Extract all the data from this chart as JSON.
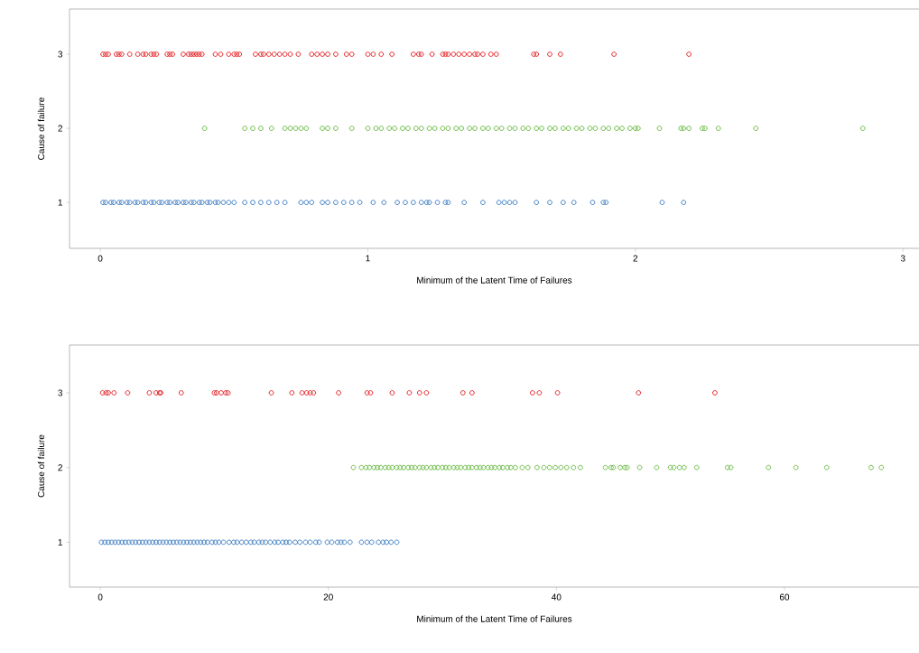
{
  "chart_data": [
    {
      "type": "scatter",
      "xlabel": "Minimum of the Latent Time of Failures",
      "ylabel": "Cause of failure",
      "marker": "circle",
      "xlim": [
        -0.115,
        3.06
      ],
      "ylim": [
        0.38,
        3.61
      ],
      "xticks": [
        0,
        1,
        2,
        3
      ],
      "yticks": [
        1,
        2,
        3
      ],
      "series": [
        {
          "color": "#e8262a",
          "x": [
            0.01,
            0.02,
            0.03,
            0.06,
            0.07,
            0.08,
            0.11,
            0.14,
            0.16,
            0.17,
            0.19,
            0.2,
            0.21,
            0.25,
            0.26,
            0.27,
            0.31,
            0.33,
            0.34,
            0.35,
            0.36,
            0.37,
            0.38,
            0.43,
            0.45,
            0.48,
            0.5,
            0.51,
            0.52,
            0.58,
            0.6,
            0.61,
            0.63,
            0.65,
            0.67,
            0.69,
            0.71,
            0.74,
            0.79,
            0.81,
            0.83,
            0.85,
            0.88,
            0.92,
            0.94,
            1.0,
            1.02,
            1.05,
            1.09,
            1.17,
            1.19,
            1.2,
            1.24,
            1.28,
            1.29,
            1.3,
            1.32,
            1.34,
            1.36,
            1.38,
            1.4,
            1.41,
            1.43,
            1.46,
            1.48,
            1.62,
            1.63,
            1.68,
            1.72,
            1.92,
            2.2
          ],
          "values": [
            3,
            3,
            3,
            3,
            3,
            3,
            3,
            3,
            3,
            3,
            3,
            3,
            3,
            3,
            3,
            3,
            3,
            3,
            3,
            3,
            3,
            3,
            3,
            3,
            3,
            3,
            3,
            3,
            3,
            3,
            3,
            3,
            3,
            3,
            3,
            3,
            3,
            3,
            3,
            3,
            3,
            3,
            3,
            3,
            3,
            3,
            3,
            3,
            3,
            3,
            3,
            3,
            3,
            3,
            3,
            3,
            3,
            3,
            3,
            3,
            3,
            3,
            3,
            3,
            3,
            3,
            3,
            3,
            3,
            3,
            3
          ]
        },
        {
          "color": "#6bbd45",
          "x": [
            0.39,
            0.54,
            0.57,
            0.6,
            0.64,
            0.69,
            0.71,
            0.73,
            0.75,
            0.77,
            0.83,
            0.85,
            0.88,
            0.94,
            1.0,
            1.03,
            1.05,
            1.08,
            1.1,
            1.13,
            1.15,
            1.18,
            1.2,
            1.23,
            1.25,
            1.28,
            1.3,
            1.33,
            1.35,
            1.38,
            1.4,
            1.43,
            1.45,
            1.48,
            1.5,
            1.53,
            1.55,
            1.58,
            1.6,
            1.63,
            1.65,
            1.68,
            1.7,
            1.73,
            1.75,
            1.78,
            1.8,
            1.83,
            1.85,
            1.88,
            1.9,
            1.93,
            1.95,
            1.98,
            2.0,
            2.01,
            2.09,
            2.17,
            2.18,
            2.2,
            2.25,
            2.26,
            2.31,
            2.45,
            2.85
          ],
          "values": [
            2,
            2,
            2,
            2,
            2,
            2,
            2,
            2,
            2,
            2,
            2,
            2,
            2,
            2,
            2,
            2,
            2,
            2,
            2,
            2,
            2,
            2,
            2,
            2,
            2,
            2,
            2,
            2,
            2,
            2,
            2,
            2,
            2,
            2,
            2,
            2,
            2,
            2,
            2,
            2,
            2,
            2,
            2,
            2,
            2,
            2,
            2,
            2,
            2,
            2,
            2,
            2,
            2,
            2,
            2,
            2,
            2,
            2,
            2,
            2,
            2,
            2,
            2,
            2,
            2
          ]
        },
        {
          "color": "#3f7fc4",
          "x": [
            0.01,
            0.02,
            0.04,
            0.05,
            0.07,
            0.08,
            0.1,
            0.11,
            0.13,
            0.14,
            0.16,
            0.17,
            0.19,
            0.2,
            0.22,
            0.23,
            0.25,
            0.26,
            0.28,
            0.29,
            0.31,
            0.32,
            0.34,
            0.35,
            0.37,
            0.38,
            0.4,
            0.41,
            0.43,
            0.44,
            0.46,
            0.48,
            0.5,
            0.54,
            0.57,
            0.6,
            0.63,
            0.66,
            0.69,
            0.75,
            0.77,
            0.79,
            0.83,
            0.85,
            0.88,
            0.91,
            0.94,
            0.97,
            1.02,
            1.06,
            1.11,
            1.14,
            1.17,
            1.2,
            1.22,
            1.23,
            1.26,
            1.29,
            1.3,
            1.36,
            1.43,
            1.49,
            1.51,
            1.53,
            1.55,
            1.63,
            1.68,
            1.73,
            1.77,
            1.84,
            1.88,
            1.89,
            2.1,
            2.18
          ],
          "values": [
            1,
            1,
            1,
            1,
            1,
            1,
            1,
            1,
            1,
            1,
            1,
            1,
            1,
            1,
            1,
            1,
            1,
            1,
            1,
            1,
            1,
            1,
            1,
            1,
            1,
            1,
            1,
            1,
            1,
            1,
            1,
            1,
            1,
            1,
            1,
            1,
            1,
            1,
            1,
            1,
            1,
            1,
            1,
            1,
            1,
            1,
            1,
            1,
            1,
            1,
            1,
            1,
            1,
            1,
            1,
            1,
            1,
            1,
            1,
            1,
            1,
            1,
            1,
            1,
            1,
            1,
            1,
            1,
            1,
            1,
            1,
            1,
            1,
            1
          ]
        }
      ]
    },
    {
      "type": "scatter",
      "xlabel": "Minimum of the Latent Time of Failures",
      "ylabel": "Cause of failure",
      "marker": "circle",
      "xlim": [
        -2.7,
        71.8
      ],
      "ylim": [
        0.4,
        3.64
      ],
      "xticks": [
        0,
        20,
        40,
        60
      ],
      "yticks": [
        1,
        2,
        3
      ],
      "series": [
        {
          "color": "#e8262a",
          "x": [
            0.2,
            0.5,
            0.7,
            1.2,
            2.4,
            4.3,
            4.9,
            5.2,
            5.3,
            7.1,
            10.0,
            10.2,
            10.6,
            11.0,
            11.2,
            15.0,
            16.8,
            17.7,
            18.1,
            18.4,
            18.7,
            20.9,
            23.4,
            23.7,
            25.6,
            27.1,
            28.0,
            28.6,
            31.8,
            32.6,
            37.9,
            38.5,
            40.1,
            47.2,
            53.9
          ],
          "values": [
            3,
            3,
            3,
            3,
            3,
            3,
            3,
            3,
            3,
            3,
            3,
            3,
            3,
            3,
            3,
            3,
            3,
            3,
            3,
            3,
            3,
            3,
            3,
            3,
            3,
            3,
            3,
            3,
            3,
            3,
            3,
            3,
            3,
            3,
            3
          ]
        },
        {
          "color": "#6bbd45",
          "x": [
            22.2,
            22.9,
            23.3,
            23.6,
            24.0,
            24.3,
            24.6,
            25.0,
            25.3,
            25.6,
            26.0,
            26.3,
            26.6,
            27.0,
            27.3,
            27.6,
            28.0,
            28.3,
            28.6,
            29.0,
            29.3,
            29.6,
            30.0,
            30.3,
            30.6,
            31.0,
            31.3,
            31.6,
            32.0,
            32.3,
            32.6,
            33.0,
            33.3,
            33.6,
            34.0,
            34.3,
            34.6,
            35.0,
            35.3,
            35.7,
            36.0,
            36.4,
            37.0,
            37.5,
            38.3,
            38.9,
            39.4,
            39.9,
            40.4,
            40.9,
            41.5,
            42.1,
            44.3,
            44.8,
            45.0,
            45.6,
            46.0,
            46.2,
            47.3,
            48.8,
            50.0,
            50.3,
            50.8,
            51.2,
            52.3,
            55.0,
            55.3,
            58.6,
            61.0,
            63.7,
            67.6,
            68.5
          ],
          "values": [
            2,
            2,
            2,
            2,
            2,
            2,
            2,
            2,
            2,
            2,
            2,
            2,
            2,
            2,
            2,
            2,
            2,
            2,
            2,
            2,
            2,
            2,
            2,
            2,
            2,
            2,
            2,
            2,
            2,
            2,
            2,
            2,
            2,
            2,
            2,
            2,
            2,
            2,
            2,
            2,
            2,
            2,
            2,
            2,
            2,
            2,
            2,
            2,
            2,
            2,
            2,
            2,
            2,
            2,
            2,
            2,
            2,
            2,
            2,
            2,
            2,
            2,
            2,
            2,
            2,
            2,
            2,
            2,
            2,
            2,
            2,
            2
          ]
        },
        {
          "color": "#3f7fc4",
          "x": [
            0.1,
            0.4,
            0.7,
            1.0,
            1.3,
            1.6,
            1.9,
            2.2,
            2.5,
            2.8,
            3.1,
            3.4,
            3.7,
            4.0,
            4.3,
            4.6,
            4.9,
            5.2,
            5.5,
            5.8,
            6.1,
            6.4,
            6.7,
            7.0,
            7.3,
            7.6,
            7.9,
            8.2,
            8.5,
            8.8,
            9.1,
            9.4,
            9.8,
            10.1,
            10.4,
            10.8,
            11.3,
            11.7,
            12.0,
            12.4,
            12.8,
            13.2,
            13.5,
            13.9,
            14.2,
            14.5,
            14.9,
            15.3,
            15.6,
            16.0,
            16.3,
            16.6,
            17.1,
            17.5,
            18.0,
            18.4,
            18.9,
            19.2,
            19.9,
            20.3,
            20.8,
            21.1,
            21.4,
            21.9,
            22.9,
            23.4,
            23.8,
            24.4,
            24.8,
            25.1,
            25.5,
            26.0
          ],
          "values": [
            1,
            1,
            1,
            1,
            1,
            1,
            1,
            1,
            1,
            1,
            1,
            1,
            1,
            1,
            1,
            1,
            1,
            1,
            1,
            1,
            1,
            1,
            1,
            1,
            1,
            1,
            1,
            1,
            1,
            1,
            1,
            1,
            1,
            1,
            1,
            1,
            1,
            1,
            1,
            1,
            1,
            1,
            1,
            1,
            1,
            1,
            1,
            1,
            1,
            1,
            1,
            1,
            1,
            1,
            1,
            1,
            1,
            1,
            1,
            1,
            1,
            1,
            1,
            1,
            1,
            1,
            1,
            1,
            1,
            1,
            1,
            1
          ]
        }
      ]
    }
  ]
}
